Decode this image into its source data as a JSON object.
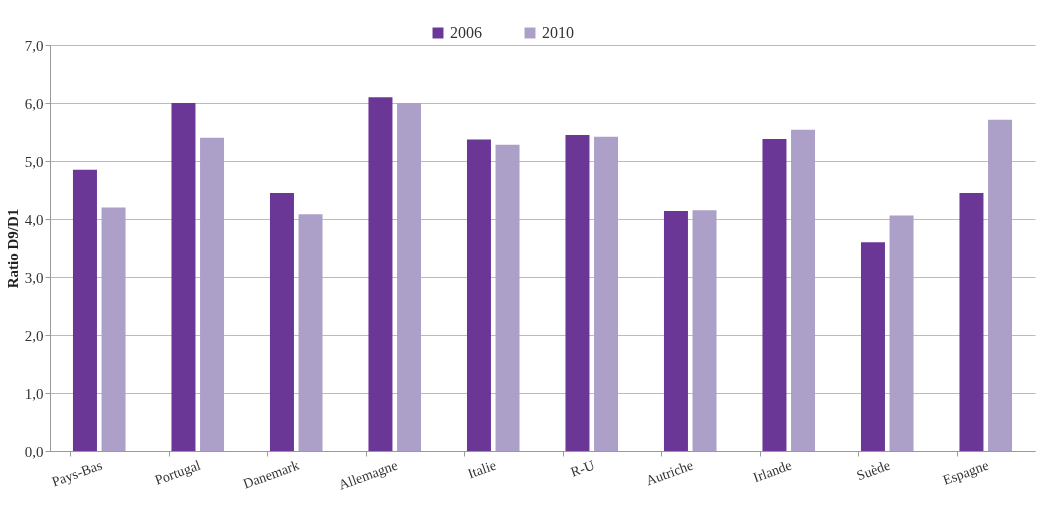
{
  "chart_data": {
    "type": "bar",
    "ylabel": "Ratio D9/D1",
    "categories": [
      "Pays-Bas",
      "Portugal",
      "Danemark",
      "Allemagne",
      "Italie",
      "R-U",
      "Autriche",
      "Irlande",
      "Suède",
      "Espagne"
    ],
    "series": [
      {
        "name": "2006",
        "color": "#6b3797",
        "values": [
          4.85,
          6.0,
          4.45,
          6.1,
          5.37,
          5.45,
          4.14,
          5.38,
          3.6,
          4.45
        ]
      },
      {
        "name": "2010",
        "color": "#ada0c8",
        "values": [
          4.2,
          5.4,
          4.08,
          6.0,
          5.28,
          5.42,
          4.15,
          5.54,
          4.06,
          5.71
        ]
      }
    ],
    "ylim": [
      0,
      7
    ],
    "yticks": [
      {
        "value": 0,
        "label": "0,0"
      },
      {
        "value": 1,
        "label": "1,0"
      },
      {
        "value": 2,
        "label": "2,0"
      },
      {
        "value": 3,
        "label": "3,0"
      },
      {
        "value": 4,
        "label": "4,0"
      },
      {
        "value": 5,
        "label": "5,0"
      },
      {
        "value": 6,
        "label": "6,0"
      },
      {
        "value": 7,
        "label": "7,0"
      }
    ],
    "grid": "y",
    "legend": "top"
  }
}
